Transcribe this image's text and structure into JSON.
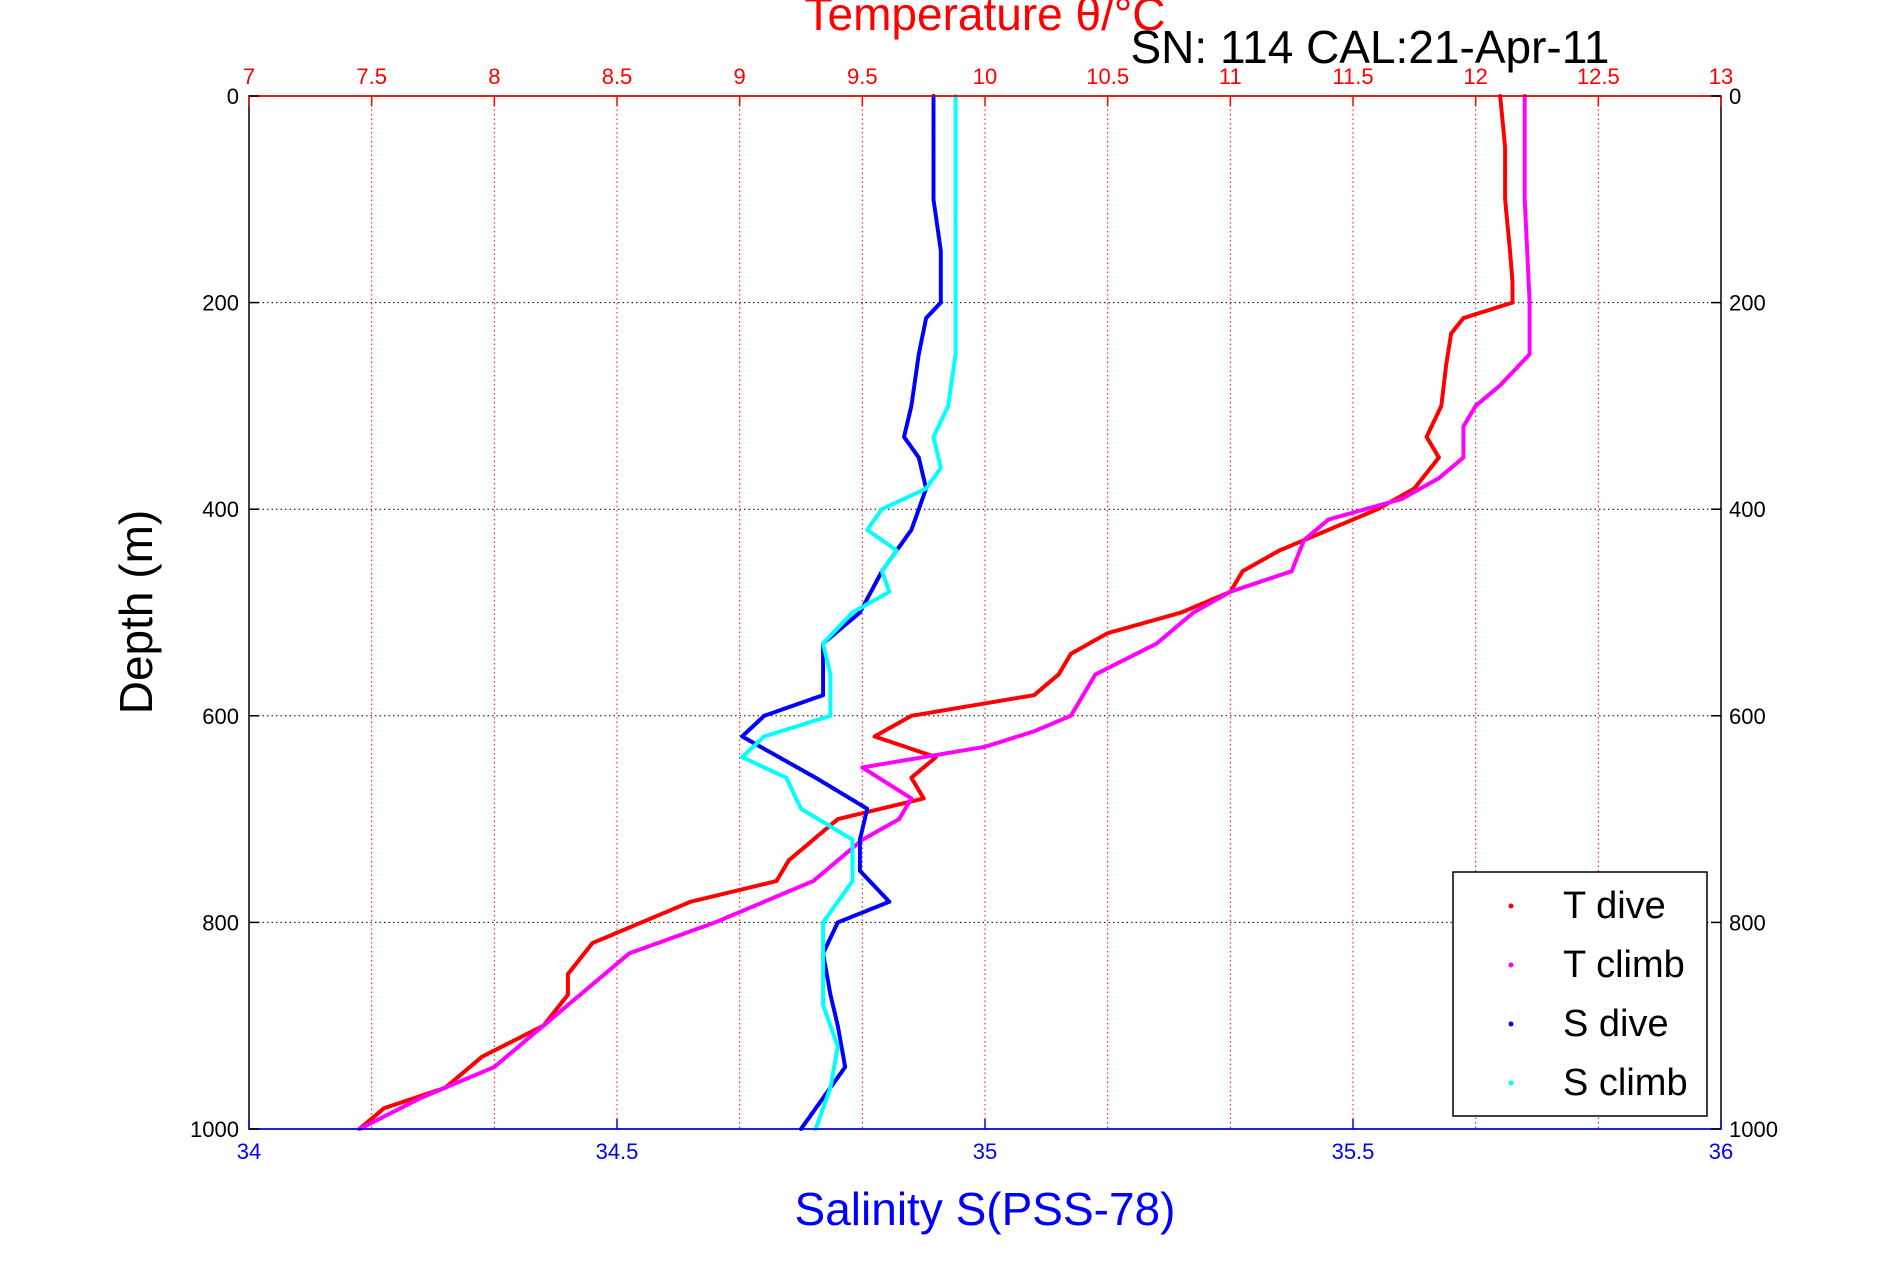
{
  "chart_data": {
    "type": "scatter",
    "title": "Temperature θ/°C",
    "subtitle": "SN: 114  CAL:21-Apr-11",
    "xlabel_bottom": "Salinity S(PSS-78)",
    "ylabel": "Depth (m)",
    "colors": {
      "temperature_axis": "#ff0000",
      "salinity_axis": "#0000ff",
      "t_dive": "#ff0000",
      "t_climb": "#ff00ff",
      "s_dive": "#0000ff",
      "s_climb": "#00ffff"
    },
    "x_top": {
      "lim": [
        7,
        13
      ],
      "ticks": [
        7,
        7.5,
        8,
        8.5,
        9,
        9.5,
        10,
        10.5,
        11,
        11.5,
        12,
        12.5,
        13
      ],
      "tick_labels": [
        "7",
        "7.5",
        "8",
        "8.5",
        "9",
        "9.5",
        "10",
        "10.5",
        "11",
        "11.5",
        "12",
        "12.5",
        "13"
      ]
    },
    "x_bottom": {
      "lim": [
        34,
        36
      ],
      "ticks": [
        34,
        34.5,
        35,
        35.5,
        36
      ],
      "tick_labels": [
        "34",
        "34.5",
        "35",
        "35.5",
        "36"
      ]
    },
    "y": {
      "lim": [
        0,
        1000
      ],
      "reversed": true,
      "ticks": [
        0,
        200,
        400,
        600,
        800,
        1000
      ],
      "tick_labels": [
        "0",
        "200",
        "400",
        "600",
        "800",
        "1000"
      ]
    },
    "grid": true,
    "legend_position": "bottom-right",
    "series": [
      {
        "name": "T dive",
        "axis": "temperature",
        "depth": [
          0,
          50,
          100,
          150,
          180,
          200,
          215,
          230,
          260,
          300,
          330,
          350,
          380,
          400,
          420,
          440,
          460,
          480,
          500,
          520,
          540,
          560,
          580,
          600,
          620,
          640,
          660,
          680,
          700,
          720,
          740,
          760,
          780,
          800,
          820,
          850,
          870,
          900,
          930,
          960,
          980,
          1000
        ],
        "values": [
          12.1,
          12.12,
          12.12,
          12.14,
          12.15,
          12.15,
          11.95,
          11.9,
          11.88,
          11.86,
          11.8,
          11.85,
          11.75,
          11.6,
          11.4,
          11.2,
          11.05,
          11.0,
          10.8,
          10.5,
          10.35,
          10.3,
          10.2,
          9.7,
          9.55,
          9.8,
          9.7,
          9.75,
          9.4,
          9.3,
          9.2,
          9.15,
          8.8,
          8.6,
          8.4,
          8.3,
          8.3,
          8.2,
          7.95,
          7.8,
          7.55,
          7.45
        ]
      },
      {
        "name": "T climb",
        "axis": "temperature",
        "depth": [
          0,
          50,
          100,
          150,
          200,
          250,
          280,
          300,
          320,
          350,
          370,
          390,
          410,
          430,
          460,
          480,
          500,
          530,
          560,
          600,
          615,
          630,
          650,
          680,
          700,
          720,
          740,
          760,
          780,
          800,
          830,
          860,
          900,
          940,
          970,
          1000
        ],
        "values": [
          12.2,
          12.2,
          12.2,
          12.21,
          12.22,
          12.22,
          12.1,
          12.0,
          11.95,
          11.95,
          11.85,
          11.7,
          11.4,
          11.3,
          11.25,
          11.0,
          10.85,
          10.7,
          10.45,
          10.35,
          10.2,
          10.0,
          9.5,
          9.7,
          9.65,
          9.5,
          9.4,
          9.3,
          9.1,
          8.9,
          8.55,
          8.4,
          8.2,
          8.0,
          7.7,
          7.45
        ]
      },
      {
        "name": "S dive",
        "axis": "salinity",
        "depth": [
          0,
          50,
          100,
          150,
          200,
          215,
          250,
          300,
          330,
          350,
          380,
          420,
          460,
          500,
          530,
          560,
          580,
          600,
          620,
          640,
          660,
          690,
          720,
          750,
          780,
          800,
          830,
          870,
          900,
          940,
          970,
          1000
        ],
        "values": [
          34.93,
          34.93,
          34.93,
          34.94,
          34.94,
          34.92,
          34.91,
          34.9,
          34.89,
          34.91,
          34.92,
          34.9,
          34.86,
          34.83,
          34.78,
          34.78,
          34.78,
          34.7,
          34.67,
          34.72,
          34.77,
          34.84,
          34.83,
          34.83,
          34.87,
          34.8,
          34.78,
          34.79,
          34.8,
          34.81,
          34.78,
          34.75
        ]
      },
      {
        "name": "S climb",
        "axis": "salinity",
        "depth": [
          0,
          50,
          100,
          150,
          200,
          250,
          300,
          330,
          360,
          380,
          400,
          420,
          440,
          460,
          480,
          500,
          530,
          560,
          600,
          620,
          640,
          660,
          690,
          720,
          760,
          800,
          840,
          880,
          920,
          960,
          1000
        ],
        "values": [
          34.96,
          34.96,
          34.96,
          34.96,
          34.96,
          34.96,
          34.95,
          34.93,
          34.94,
          34.92,
          34.86,
          34.84,
          34.88,
          34.86,
          34.87,
          34.82,
          34.78,
          34.79,
          34.79,
          34.7,
          34.67,
          34.73,
          34.75,
          34.82,
          34.82,
          34.78,
          34.78,
          34.78,
          34.8,
          34.79,
          34.77
        ]
      }
    ]
  }
}
